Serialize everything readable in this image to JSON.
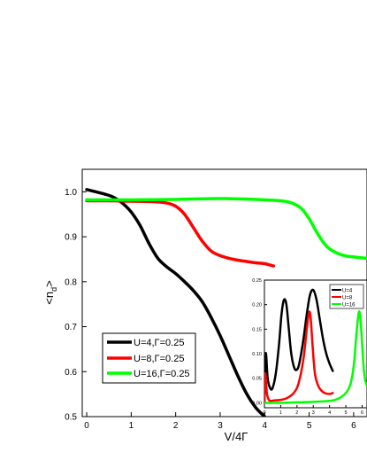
{
  "chart_data": [
    {
      "type": "line",
      "xlabel": "V/4Γ",
      "ylabel": "<n",
      "ylabel_sub": "d",
      "ylabel_close": ">",
      "xlim": [
        -0.1,
        6.3
      ],
      "ylim": [
        0.5,
        1.05
      ],
      "xticks": [
        "0",
        "1",
        "2",
        "3",
        "4",
        "5",
        "6"
      ],
      "yticks": [
        "0.5",
        "0.6",
        "0.7",
        "0.8",
        "0.9",
        "1.0"
      ],
      "legend_position": "bottom-left",
      "series": [
        {
          "name": "U=4,Γ=0.25",
          "color": "#000000",
          "x": [
            0,
            0.2,
            0.4,
            0.6,
            0.8,
            1.0,
            1.2,
            1.4,
            1.6,
            1.8,
            2.0,
            2.2,
            2.4,
            2.6,
            2.8,
            3.0,
            3.2,
            3.4,
            3.6,
            3.8,
            4.0
          ],
          "y": [
            1.005,
            1.0,
            0.995,
            0.988,
            0.975,
            0.955,
            0.925,
            0.885,
            0.852,
            0.833,
            0.818,
            0.8,
            0.78,
            0.755,
            0.72,
            0.68,
            0.635,
            0.59,
            0.55,
            0.52,
            0.5
          ]
        },
        {
          "name": "U=8,Γ=0.25",
          "color": "#ff0000",
          "x": [
            0,
            0.5,
            1.0,
            1.5,
            1.8,
            2.0,
            2.2,
            2.4,
            2.6,
            2.8,
            3.0,
            3.2,
            3.4,
            3.6,
            3.8,
            4.0,
            4.2
          ],
          "y": [
            0.98,
            0.98,
            0.979,
            0.978,
            0.975,
            0.968,
            0.95,
            0.92,
            0.89,
            0.868,
            0.858,
            0.852,
            0.848,
            0.845,
            0.842,
            0.84,
            0.835
          ]
        },
        {
          "name": "U=16,Γ=0.25",
          "color": "#00ff00",
          "x": [
            0,
            1.0,
            2.0,
            3.0,
            4.0,
            4.5,
            4.8,
            5.0,
            5.2,
            5.4,
            5.6,
            5.8,
            6.0,
            6.2,
            6.3
          ],
          "y": [
            0.982,
            0.982,
            0.983,
            0.985,
            0.982,
            0.978,
            0.965,
            0.94,
            0.905,
            0.878,
            0.865,
            0.858,
            0.855,
            0.853,
            0.852
          ]
        }
      ]
    },
    {
      "type": "line",
      "xlim": [
        0,
        6.3
      ],
      "ylim": [
        -0.01,
        0.25
      ],
      "xticks": [
        "0",
        "1",
        "2",
        "3",
        "4",
        "5",
        "6"
      ],
      "yticks": [
        "0.00",
        "0.05",
        "0.10",
        "0.15",
        "0.20",
        "0.25"
      ],
      "legend_position": "top-right",
      "series": [
        {
          "name": "U=4",
          "color": "#000000",
          "x": [
            0,
            0.05,
            0.1,
            0.2,
            0.35,
            0.5,
            0.7,
            0.9,
            1.05,
            1.2,
            1.35,
            1.5,
            1.65,
            1.85,
            2.05,
            2.2,
            2.4,
            2.6,
            2.8,
            3.0,
            3.2,
            3.4,
            3.6,
            3.8,
            4.0,
            4.2
          ],
          "y": [
            0.0,
            0.08,
            0.1,
            0.05,
            0.03,
            0.03,
            0.06,
            0.12,
            0.18,
            0.21,
            0.2,
            0.15,
            0.1,
            0.07,
            0.07,
            0.09,
            0.13,
            0.18,
            0.22,
            0.23,
            0.21,
            0.17,
            0.13,
            0.1,
            0.08,
            0.065
          ]
        },
        {
          "name": "U=8",
          "color": "#ff0000",
          "x": [
            0,
            0.05,
            0.15,
            0.3,
            0.6,
            1.0,
            1.4,
            1.8,
            2.1,
            2.4,
            2.6,
            2.75,
            2.85,
            2.95,
            3.1,
            3.3,
            3.5,
            3.7,
            4.0,
            4.2
          ],
          "y": [
            0.0,
            0.06,
            0.02,
            0.005,
            0.005,
            0.006,
            0.01,
            0.02,
            0.04,
            0.09,
            0.15,
            0.185,
            0.17,
            0.12,
            0.06,
            0.035,
            0.025,
            0.02,
            0.018,
            0.02
          ]
        },
        {
          "name": "U=16",
          "color": "#00ff00",
          "x": [
            0,
            0.5,
            1.0,
            2.0,
            3.0,
            4.0,
            4.5,
            5.0,
            5.3,
            5.5,
            5.65,
            5.8,
            5.9,
            6.0,
            6.1,
            6.2,
            6.3
          ],
          "y": [
            0.0,
            0.0,
            0.0,
            0.001,
            0.002,
            0.004,
            0.008,
            0.02,
            0.04,
            0.08,
            0.14,
            0.185,
            0.17,
            0.12,
            0.07,
            0.045,
            0.035
          ]
        }
      ]
    }
  ]
}
